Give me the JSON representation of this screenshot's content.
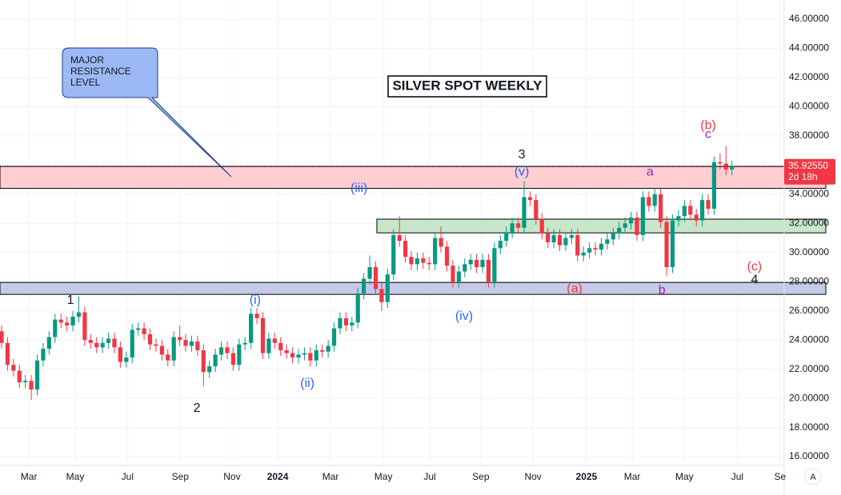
{
  "chart_data": {
    "type": "candlestick",
    "title": "SILVER SPOT WEEKLY",
    "callout": [
      "MAJOR",
      "RESISTANCE",
      "LEVEL"
    ],
    "up_color": "#089981",
    "down_color": "#f23645",
    "open": [
      24.6,
      23.8,
      22.3,
      21.9,
      21.1,
      21.2,
      20.6,
      22.6,
      23.4,
      24.2,
      25.4,
      25.2,
      25.0,
      25.6,
      25.9,
      24.0,
      23.8,
      23.5,
      23.8,
      24.1,
      23.5,
      22.5,
      22.8,
      24.7,
      24.8,
      24.4,
      23.7,
      23.6,
      23.0,
      22.6,
      24.2,
      24.0,
      23.6,
      23.9,
      23.3,
      21.8,
      22.2,
      23.0,
      23.5,
      23.1,
      22.3,
      23.7,
      23.8,
      25.8,
      25.5,
      23.1,
      24.1,
      23.8,
      23.3,
      23.1,
      22.8,
      23.0,
      23.1,
      22.6,
      23.3,
      23.2,
      23.6,
      24.8,
      25.5,
      25.0,
      25.2,
      27.2,
      28.2,
      29.0,
      27.5,
      26.6,
      28.5,
      31.2,
      30.8,
      29.7,
      29.2,
      29.6,
      29.3,
      29.2,
      31.0,
      30.4,
      29.1,
      28.0,
      28.7,
      29.2,
      29.5,
      29.0,
      29.5,
      28.0,
      30.3,
      30.8,
      31.4,
      32.0,
      31.7,
      33.8,
      33.6,
      32.3,
      31.3,
      30.7,
      31.2,
      30.5,
      31.0,
      31.2,
      29.8,
      30.0,
      30.3,
      30.2,
      30.6,
      30.9,
      31.3,
      31.7,
      32.0,
      32.4,
      31.2,
      33.8,
      33.2,
      34.0,
      32.1,
      29.0,
      32.2,
      32.5,
      33.2,
      32.6,
      32.2,
      33.6,
      33.0,
      36.2,
      36.1,
      35.7
    ],
    "high": [
      25.0,
      24.2,
      22.7,
      22.3,
      21.6,
      21.6,
      23.0,
      23.8,
      24.6,
      25.8,
      25.8,
      25.6,
      26.0,
      27.0,
      26.3,
      24.4,
      24.2,
      24.2,
      24.5,
      24.5,
      23.9,
      23.2,
      25.1,
      25.2,
      25.2,
      24.8,
      24.1,
      24.0,
      23.4,
      24.6,
      25.0,
      24.4,
      24.3,
      24.3,
      23.7,
      22.6,
      23.4,
      23.9,
      23.9,
      23.5,
      24.1,
      24.2,
      26.2,
      26.2,
      25.9,
      24.5,
      24.5,
      24.2,
      23.7,
      23.5,
      23.4,
      23.5,
      23.5,
      23.7,
      23.7,
      24.0,
      25.2,
      25.9,
      25.9,
      25.6,
      27.6,
      28.6,
      29.8,
      29.4,
      27.9,
      28.9,
      31.6,
      32.5,
      31.2,
      30.1,
      30.0,
      30.0,
      29.7,
      31.4,
      31.8,
      30.8,
      29.5,
      29.1,
      29.6,
      29.9,
      29.9,
      29.9,
      29.9,
      30.7,
      31.2,
      31.8,
      32.4,
      32.4,
      34.9,
      34.2,
      34.0,
      32.7,
      31.7,
      31.6,
      31.6,
      31.4,
      31.6,
      31.6,
      30.4,
      30.7,
      30.7,
      31.0,
      31.3,
      31.7,
      32.1,
      32.4,
      32.8,
      32.8,
      34.2,
      34.2,
      34.4,
      34.4,
      32.5,
      32.6,
      32.9,
      33.6,
      33.6,
      33.0,
      34.0,
      34.0,
      36.6,
      36.8,
      37.3,
      36.3
    ],
    "low": [
      23.4,
      21.9,
      21.5,
      20.7,
      20.7,
      19.9,
      20.2,
      22.2,
      23.0,
      23.8,
      24.8,
      24.6,
      24.6,
      25.2,
      23.6,
      23.4,
      23.1,
      23.1,
      23.4,
      23.1,
      22.1,
      22.1,
      22.4,
      24.3,
      24.0,
      23.3,
      23.2,
      22.6,
      22.2,
      22.2,
      23.6,
      23.2,
      23.2,
      22.9,
      20.8,
      21.4,
      21.8,
      22.6,
      22.7,
      21.9,
      21.9,
      23.3,
      23.4,
      25.1,
      22.7,
      22.7,
      23.4,
      22.9,
      22.7,
      22.4,
      22.4,
      22.6,
      22.2,
      22.2,
      22.8,
      22.8,
      23.2,
      24.4,
      24.6,
      24.6,
      24.8,
      26.8,
      27.8,
      27.1,
      26.0,
      26.2,
      28.1,
      30.4,
      29.3,
      28.8,
      28.8,
      28.9,
      28.8,
      28.8,
      30.0,
      28.7,
      27.6,
      27.6,
      28.3,
      28.8,
      28.6,
      28.6,
      27.6,
      27.6,
      29.9,
      30.4,
      31.0,
      31.3,
      31.3,
      33.2,
      31.9,
      30.9,
      30.3,
      30.3,
      30.1,
      30.1,
      30.6,
      29.4,
      29.4,
      29.6,
      29.8,
      29.8,
      30.2,
      30.5,
      30.9,
      31.3,
      31.6,
      30.8,
      30.8,
      32.8,
      32.8,
      31.7,
      28.4,
      28.6,
      31.8,
      32.1,
      32.2,
      31.8,
      31.8,
      32.6,
      32.6,
      35.7,
      35.3,
      35.3
    ],
    "close": [
      23.8,
      22.3,
      21.9,
      21.1,
      21.2,
      20.6,
      22.6,
      23.4,
      24.2,
      25.4,
      25.2,
      25.0,
      25.6,
      25.9,
      24.0,
      23.8,
      23.5,
      23.8,
      24.1,
      23.5,
      22.5,
      22.8,
      24.7,
      24.8,
      24.4,
      23.7,
      23.6,
      23.0,
      22.6,
      24.2,
      24.0,
      23.6,
      23.9,
      23.3,
      21.8,
      22.2,
      23.0,
      23.5,
      23.1,
      22.3,
      23.7,
      23.8,
      25.8,
      25.5,
      23.1,
      24.1,
      23.8,
      23.3,
      23.1,
      22.8,
      23.0,
      23.1,
      22.6,
      23.3,
      23.2,
      23.6,
      24.8,
      25.5,
      25.0,
      25.2,
      27.2,
      28.2,
      29.0,
      27.5,
      26.6,
      28.5,
      31.2,
      30.8,
      29.7,
      29.2,
      29.6,
      29.3,
      29.2,
      31.0,
      30.4,
      29.1,
      28.0,
      28.7,
      29.2,
      29.5,
      29.0,
      29.5,
      28.0,
      30.3,
      30.8,
      31.4,
      32.0,
      31.7,
      33.8,
      33.6,
      32.3,
      31.3,
      30.7,
      31.2,
      30.5,
      31.0,
      31.2,
      29.8,
      30.0,
      30.3,
      30.2,
      30.6,
      30.9,
      31.3,
      31.7,
      32.0,
      32.4,
      31.2,
      33.8,
      33.2,
      34.0,
      32.1,
      29.0,
      32.2,
      32.5,
      33.2,
      32.6,
      32.2,
      33.6,
      33.0,
      36.2,
      36.1,
      35.7,
      35.9255
    ],
    "last_label": "35.92550",
    "countdown": "2d 18h",
    "xlim": [
      -0.27,
      131.8
    ],
    "xticks": [
      {
        "value": 4.6,
        "label": "Mar"
      },
      {
        "value": 12.4,
        "label": "May"
      },
      {
        "value": 21.2,
        "label": "Jul"
      },
      {
        "value": 30.1,
        "label": "Sep"
      },
      {
        "value": 38.8,
        "label": "Nov"
      },
      {
        "value": 46.5,
        "label": "2024"
      },
      {
        "value": 55.4,
        "label": "Mar"
      },
      {
        "value": 64.3,
        "label": "May"
      },
      {
        "value": 72.1,
        "label": "Jul"
      },
      {
        "value": 80.7,
        "label": "Sep"
      },
      {
        "value": 89.5,
        "label": "Nov"
      },
      {
        "value": 98.5,
        "label": "2025"
      },
      {
        "value": 106.2,
        "label": "Mar"
      },
      {
        "value": 115.0,
        "label": "May"
      },
      {
        "value": 123.9,
        "label": "Jul"
      },
      {
        "value": 131.1,
        "label": "Se"
      }
    ],
    "ylim": [
      15.4,
      47.32
    ],
    "yticks": [
      {
        "value": 16,
        "label": "16.00000"
      },
      {
        "value": 18,
        "label": "18.00000"
      },
      {
        "value": 20,
        "label": "20.00000"
      },
      {
        "value": 22,
        "label": "22.00000"
      },
      {
        "value": 24,
        "label": "24.00000"
      },
      {
        "value": 26,
        "label": "26.00000"
      },
      {
        "value": 28,
        "label": "28.00000"
      },
      {
        "value": 30,
        "label": "30.00000"
      },
      {
        "value": 32,
        "label": "32.00000"
      },
      {
        "value": 34,
        "label": "34.00000"
      },
      {
        "value": 36,
        "label": "36.00000"
      },
      {
        "value": 38,
        "label": "38.00000"
      },
      {
        "value": 40,
        "label": "40.00000"
      },
      {
        "value": 42,
        "label": "42.00000"
      },
      {
        "value": 44,
        "label": "44.00000"
      },
      {
        "value": 46,
        "label": "46.00000"
      }
    ],
    "grid": true,
    "zones": [
      {
        "low": 34.4,
        "high": 35.9,
        "color": "#ffcdd2"
      },
      {
        "low": 31.35,
        "high": 32.29,
        "from": 63.2,
        "color": "#c8e6c9"
      },
      {
        "low": 27.13,
        "high": 27.95,
        "color": "#c5cae9"
      }
    ],
    "annotations": [
      {
        "text": "1",
        "x": 11.6,
        "y": 26.7,
        "color": "#131722"
      },
      {
        "text": "2",
        "x": 32.9,
        "y": 19.3,
        "color": "#131722"
      },
      {
        "text": "3",
        "x": 87.6,
        "y": 36.7,
        "color": "#131722"
      },
      {
        "text": "4",
        "x": 126.8,
        "y": 28.1,
        "color": "#131722"
      },
      {
        "text": "(i)",
        "x": 42.7,
        "y": 26.7,
        "color": "#2962ff"
      },
      {
        "text": "(ii)",
        "x": 51.5,
        "y": 21.0,
        "color": "#2962ff"
      },
      {
        "text": "(iii)",
        "x": 60.2,
        "y": 34.4,
        "color": "#2962ff"
      },
      {
        "text": "(iv)",
        "x": 77.9,
        "y": 25.6,
        "color": "#2962ff"
      },
      {
        "text": "(v)",
        "x": 87.6,
        "y": 35.5,
        "color": "#2962ff"
      },
      {
        "text": "(a)",
        "x": 96.5,
        "y": 27.5,
        "color": "#f23645"
      },
      {
        "text": "a",
        "x": 109.2,
        "y": 35.5,
        "color": "#9c27b0"
      },
      {
        "text": "b",
        "x": 111.2,
        "y": 27.4,
        "color": "#9c27b0"
      },
      {
        "text": "c",
        "x": 119.0,
        "y": 38.1,
        "color": "#9c27b0"
      },
      {
        "text": "(b)",
        "x": 119.0,
        "y": 38.7,
        "color": "#f23645"
      },
      {
        "text": "(c)",
        "x": 126.8,
        "y": 29.0,
        "color": "#f23645"
      }
    ]
  }
}
